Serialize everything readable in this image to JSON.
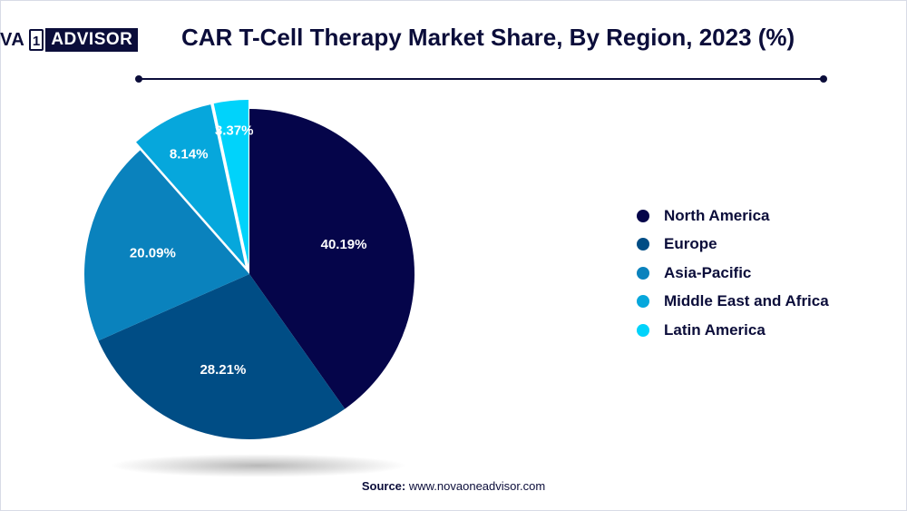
{
  "brand": {
    "logo_left": "VA",
    "logo_mark": "1",
    "logo_right": "ADVISOR"
  },
  "chart_data": {
    "type": "pie",
    "title": "CAR T-Cell Therapy Market Share, By Region, 2023 (%)",
    "slices": [
      {
        "label": "North America",
        "value": 40.19,
        "value_label": "40.19%",
        "color": "#05054a"
      },
      {
        "label": "Europe",
        "value": 28.21,
        "value_label": "28.21%",
        "color": "#004d85"
      },
      {
        "label": "Asia-Pacific",
        "value": 20.09,
        "value_label": "20.09%",
        "color": "#0a82bd"
      },
      {
        "label": "Middle East and Africa",
        "value": 8.14,
        "value_label": "8.14%",
        "color": "#06a7dc"
      },
      {
        "label": "Latin America",
        "value": 3.37,
        "value_label": "3.37%",
        "color": "#00d3fb"
      }
    ],
    "exploded": [
      "Middle East and Africa",
      "Latin America"
    ],
    "start_angle_deg": 0,
    "direction": "clockwise",
    "legend_position": "right"
  },
  "source": {
    "label": "Source:",
    "text": "www.novaoneadvisor.com"
  }
}
